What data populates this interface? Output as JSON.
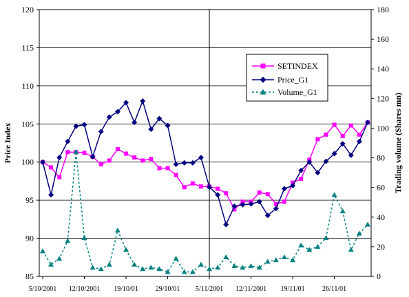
{
  "chart_data": {
    "type": "line",
    "title": "",
    "ylabel": "Price Index",
    "y2label": "Trading volume (Shares mn)",
    "xlabel": "",
    "ylim": [
      85,
      120
    ],
    "yticks": [
      85,
      90,
      95,
      100,
      105,
      110,
      115,
      120
    ],
    "y2lim": [
      0,
      180
    ],
    "y2ticks": [
      0,
      20,
      40,
      60,
      80,
      100,
      120,
      140,
      160,
      180
    ],
    "grid": "horizontal",
    "legend_position": "right",
    "x_tick_labels": [
      {
        "index": 0,
        "label": "5/10/2001"
      },
      {
        "index": 5,
        "label": "12/10/2001"
      },
      {
        "index": 10,
        "label": "19/10/01"
      },
      {
        "index": 15,
        "label": "29/10/01"
      },
      {
        "index": 20,
        "label": "5/11/2001"
      },
      {
        "index": 25,
        "label": "12/11/2001"
      },
      {
        "index": 30,
        "label": "19/11/01"
      },
      {
        "index": 35,
        "label": "26/11/01"
      }
    ],
    "vertical_marker_index": 20,
    "series": [
      {
        "name": "SETINDEX",
        "axis": "left",
        "color": "#ff00ff",
        "marker": "square",
        "line": "solid",
        "values": [
          100,
          99.3,
          98,
          101.3,
          101.3,
          101.2,
          100.7,
          99.7,
          100.2,
          101.7,
          101.1,
          100.6,
          100.2,
          100.4,
          99.2,
          99.2,
          98.3,
          96.7,
          97.2,
          96.8,
          96.8,
          96.5,
          95.9,
          93.8,
          94.8,
          94.8,
          96,
          95.8,
          94.5,
          94.8,
          97.3,
          97.8,
          100.3,
          103,
          103.6,
          104.9,
          103.4,
          104.8,
          103.6,
          105.2
        ]
      },
      {
        "name": "Price_G1",
        "axis": "left",
        "color": "#000080",
        "marker": "diamond",
        "line": "solid",
        "values": [
          100,
          95.7,
          100.6,
          102.7,
          104.7,
          104.9,
          100.7,
          104,
          105.9,
          106.6,
          107.8,
          105.2,
          108,
          104.3,
          105.7,
          104.8,
          99.7,
          99.9,
          99.9,
          100.6,
          96.7,
          95.7,
          91.8,
          94.2,
          94.4,
          94.5,
          94.8,
          93,
          93.9,
          96.5,
          96.9,
          98.9,
          100,
          98.6,
          100.1,
          101.1,
          102.4,
          100.9,
          102.7,
          105.2
        ]
      },
      {
        "name": "Volume_G1",
        "axis": "right",
        "color": "#008080",
        "marker": "triangle",
        "line": "dashed",
        "values": [
          17,
          8,
          12,
          24,
          84,
          26,
          6,
          5,
          8,
          31,
          18,
          8,
          5,
          6,
          5,
          3,
          12,
          3,
          3,
          8,
          5,
          6,
          13,
          7,
          6,
          7,
          6,
          10,
          11,
          13,
          11,
          21,
          18,
          20,
          26,
          55,
          44,
          18,
          29,
          35
        ]
      }
    ]
  }
}
